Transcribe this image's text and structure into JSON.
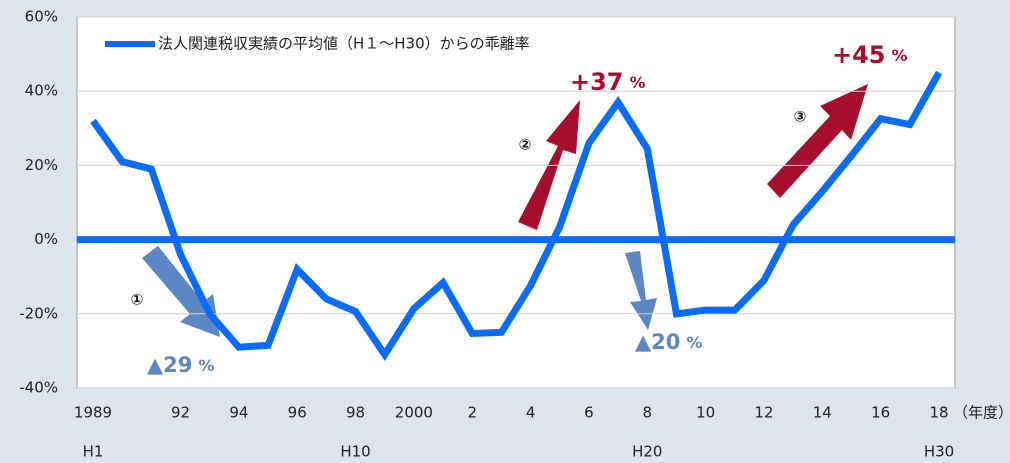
{
  "chart_data": {
    "type": "line",
    "categories": [
      "1989",
      null,
      null,
      "92",
      null,
      "94",
      null,
      "96",
      null,
      "98",
      null,
      "2000",
      null,
      "2",
      null,
      "4",
      null,
      "6",
      null,
      "8",
      null,
      "10",
      null,
      "12",
      null,
      "14",
      null,
      "16",
      null,
      "18"
    ],
    "era_labels": [
      "H1",
      null,
      null,
      null,
      null,
      null,
      null,
      null,
      null,
      "H10",
      null,
      null,
      null,
      null,
      null,
      null,
      null,
      null,
      null,
      "H20",
      null,
      null,
      null,
      null,
      null,
      null,
      null,
      null,
      null,
      "H30"
    ],
    "x_axis_unit": "（年度）",
    "series": [
      {
        "name": "法人関連税収実績の平均値（H１～H30）からの乖離率",
        "color": "#0a6cff",
        "values": [
          32,
          21,
          19,
          -4,
          -20,
          -29,
          -28.5,
          -8,
          -16,
          -19.4,
          -31,
          -18.6,
          -11.6,
          -25.3,
          -25,
          -12.4,
          3.5,
          26,
          37,
          24.5,
          -20,
          -19,
          -19,
          -11,
          4,
          13,
          22.6,
          32.6,
          31,
          45
        ]
      }
    ],
    "reference_line": 0,
    "ylim": [
      -40,
      60
    ],
    "yticks": [
      {
        "value": -40,
        "label": "-40%"
      },
      {
        "value": -20,
        "label": "-20%"
      },
      {
        "value": 0,
        "label": "0%"
      },
      {
        "value": 20,
        "label": "20%"
      },
      {
        "value": 40,
        "label": "40%"
      },
      {
        "value": 60,
        "label": "60%"
      }
    ],
    "grid": true,
    "annotations": [
      {
        "marker": "①",
        "text": "▲29",
        "unit": "%",
        "color": "#5b87c5"
      },
      {
        "marker": "②",
        "text": "+37",
        "unit": "%",
        "color": "#a50f2d"
      },
      {
        "marker": "③",
        "text": "+45",
        "unit": "%",
        "color": "#a50f2d"
      },
      {
        "text": "▲20",
        "unit": "%",
        "color": "#5b87c5"
      }
    ]
  }
}
